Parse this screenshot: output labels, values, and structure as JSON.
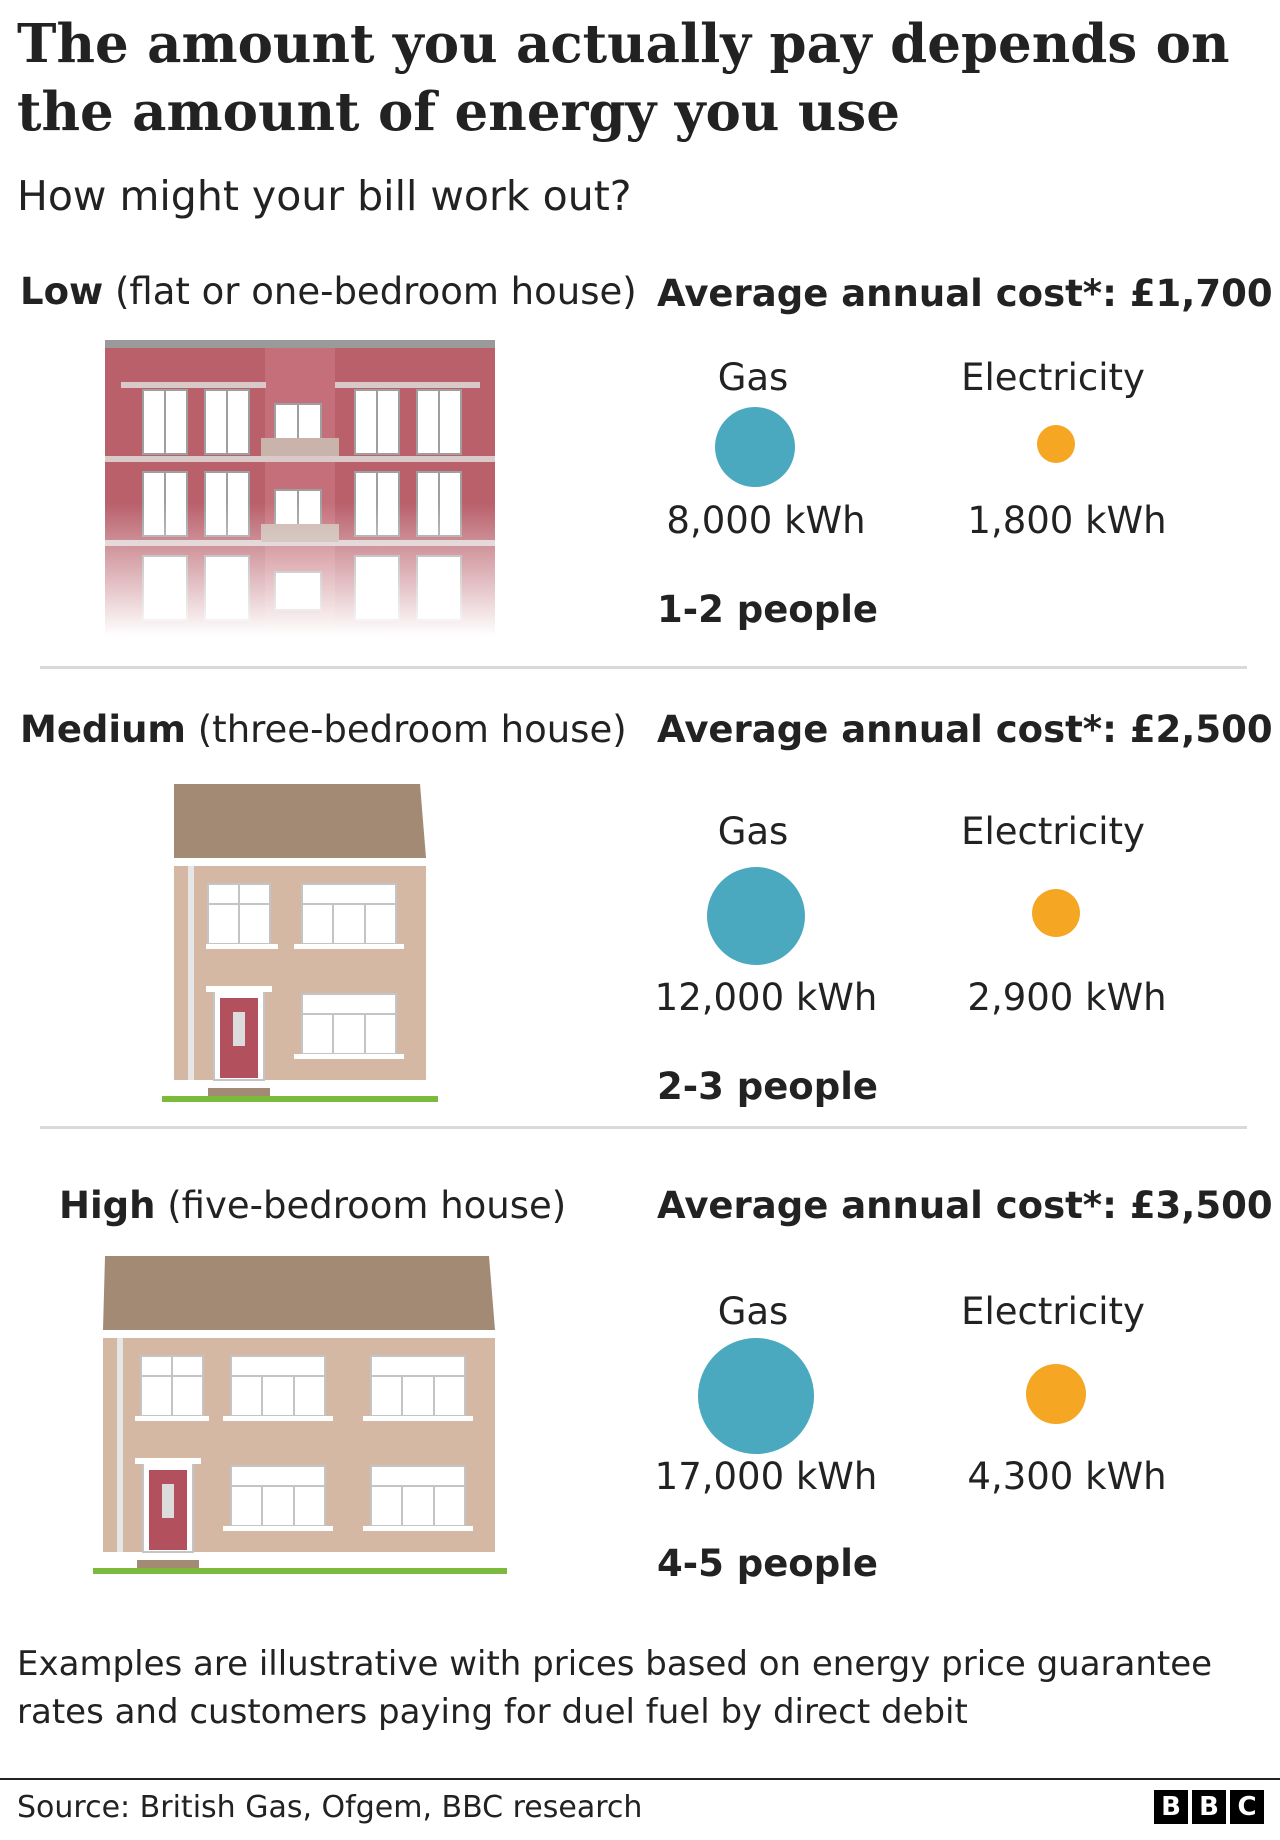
{
  "title": "The amount you actually pay depends on the amount of energy you use",
  "subtitle": "How might your bill work out?",
  "categories": [
    {
      "level": "Low",
      "description": "(flat or one-bedroom house)",
      "cost": "Average annual cost*: £1,700",
      "gas_label": "Gas",
      "electricity_label": "Electricity",
      "gas_value": "8,000 kWh",
      "electricity_value": "1,800 kWh",
      "people": "1-2 people",
      "illustration": "flat-building-icon"
    },
    {
      "level": "Medium",
      "description": "(three-bedroom house)",
      "cost": "Average annual cost*: £2,500",
      "gas_label": "Gas",
      "electricity_label": "Electricity",
      "gas_value": "12,000 kWh",
      "electricity_value": "2,900 kWh",
      "people": "2-3 people",
      "illustration": "three-bedroom-house-icon"
    },
    {
      "level": "High",
      "description": "(five-bedroom house)",
      "cost": "Average annual cost*: £3,500",
      "gas_label": "Gas",
      "electricity_label": "Electricity",
      "gas_value": "17,000 kWh",
      "electricity_value": "4,300 kWh",
      "people": "4-5 people",
      "illustration": "five-bedroom-house-icon"
    }
  ],
  "footnote": "Examples are illustrative with prices based on energy price guarantee rates and customers paying for duel fuel by direct debit",
  "source": "Source: British Gas, Ofgem, BBC research",
  "logo": {
    "letters": [
      "B",
      "B",
      "C"
    ]
  },
  "colors": {
    "gas": "#4aa9bf",
    "electricity": "#f5a623",
    "flat_brick": "#b9606b",
    "house_wall": "#d4b8a4",
    "roof": "#a28a75",
    "door": "#b3505e",
    "grass": "#7cba3e"
  }
}
